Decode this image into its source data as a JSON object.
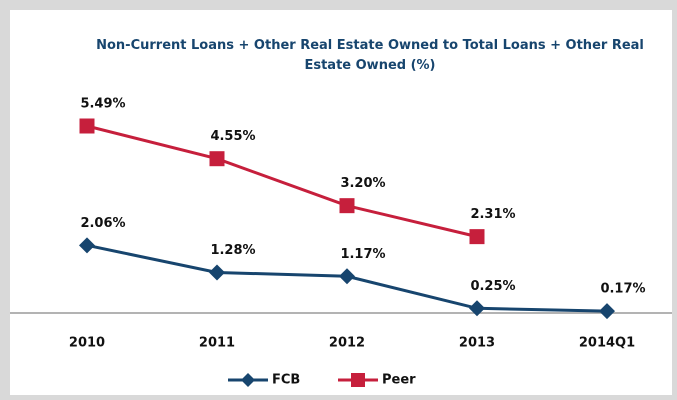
{
  "chart_data": {
    "type": "line",
    "title": "Non-Current Loans + Other Real Estate Owned to Total Loans + Other Real Estate Owned (%)",
    "categories": [
      "2010",
      "2011",
      "2012",
      "2013",
      "2014Q1"
    ],
    "series": [
      {
        "name": "FCB",
        "color": "#17456e",
        "marker": "diamond",
        "values": [
          2.06,
          1.28,
          1.17,
          0.25,
          0.17
        ],
        "value_labels": [
          "2.06%",
          "1.28%",
          "1.17%",
          "0.25%",
          "0.17%"
        ]
      },
      {
        "name": "Peer",
        "color": "#c61f3c",
        "marker": "square",
        "values": [
          5.49,
          4.55,
          3.2,
          2.31,
          null
        ],
        "value_labels": [
          "5.49%",
          "4.55%",
          "3.20%",
          "2.31%",
          null
        ]
      }
    ],
    "legend": "bottom"
  }
}
